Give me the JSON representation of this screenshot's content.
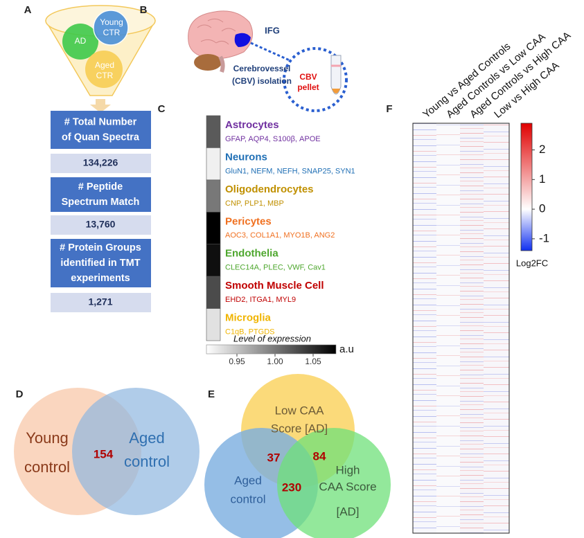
{
  "panel_labels": [
    "A",
    "B",
    "C",
    "D",
    "E",
    "F"
  ],
  "panel_a": {
    "sets": [
      [
        "AD"
      ],
      [
        "Young",
        "CTR"
      ],
      [
        "Aged",
        "CTR"
      ]
    ],
    "stats": [
      {
        "title": [
          "# Total Number",
          "of Quan Spectra"
        ],
        "value": "134,226"
      },
      {
        "title": [
          "# Peptide",
          "Spectrum Match"
        ],
        "value": "13,760"
      },
      {
        "title": [
          "# Protein Groups",
          "identified in TMT",
          "experiments"
        ],
        "value": "1,271"
      }
    ]
  },
  "panel_b": {
    "region": "IFG",
    "method": [
      "Cerebrovessel",
      "(CBV) isolation"
    ],
    "sample": [
      "CBV",
      "pellet"
    ]
  },
  "panel_c": {
    "cell_types": [
      {
        "name": "Astrocytes",
        "markers": "GFAP, AQP4, S100β, APOE",
        "color": "#7030a0",
        "level": 1.02
      },
      {
        "name": "Neurons",
        "markers": "GluN1, NEFM, NEFH, SNAP25, SYN1",
        "color": "#1f6fb5",
        "level": 0.92
      },
      {
        "name": "Oligodendrocytes",
        "markers": "CNP, PLP1, MBP",
        "color": "#c09000",
        "level": 1.0
      },
      {
        "name": "Pericytes",
        "markers": "AOC3, COL1A1, MYO1B, ANG2",
        "color": "#f07020",
        "level": 1.08
      },
      {
        "name": "Endothelia",
        "markers": "CLEC14A, PLEC, VWF, Cav1",
        "color": "#4ea72e",
        "level": 1.07
      },
      {
        "name": "Smooth Muscle Cell",
        "markers": "EHD2, ITGA1, MYL9",
        "color": "#c00000",
        "level": 1.03
      },
      {
        "name": "Microglia",
        "markers": "C1qB, PTGDS",
        "color": "#f0b400",
        "level": 0.93
      }
    ],
    "scale": {
      "title": "Level of expression",
      "unit": "a.u",
      "xlim": [
        0.91,
        1.08
      ],
      "xticks": [
        0.95,
        {
          "value": 1,
          "label": "1.00"
        },
        1.05
      ]
    }
  },
  "panel_d": {
    "sets": [
      [
        "Young",
        "control"
      ],
      [
        "Aged",
        "control"
      ]
    ],
    "overlap": 154
  },
  "panel_e": {
    "sets": [
      [
        "Low CAA",
        "Score [AD]"
      ],
      [
        "Aged",
        "control"
      ],
      [
        "High",
        "CAA Score",
        "[AD]"
      ]
    ],
    "overlaps": [
      37,
      84,
      230
    ]
  },
  "panel_f": {
    "columns": [
      "Young vs Aged Controls",
      "Aged Controls vs Low CAA",
      "Aged Controls vs High CAA",
      "Low vs High CAA"
    ],
    "colorbar": {
      "title": "Log2FC",
      "ylim": [
        -1.4,
        2.9
      ],
      "yticks": [
        2,
        1,
        0,
        -1
      ]
    }
  }
}
